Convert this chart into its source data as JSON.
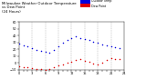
{
  "title_line1": "Milwaukee Weather Outdoor Temperature",
  "title_line2": "vs Dew Point",
  "title_line3": "(24 Hours)",
  "title_fontsize": 2.8,
  "background_color": "#ffffff",
  "grid_color": "#888888",
  "legend_labels": [
    "Outdoor Temp",
    "Dew Point"
  ],
  "legend_colors": [
    "#0000dd",
    "#dd0000"
  ],
  "tick_fontsize": 2.5,
  "ylim": [
    -10,
    60
  ],
  "yticks": [
    -10,
    0,
    10,
    20,
    30,
    40,
    50,
    60
  ],
  "xlim": [
    0,
    24
  ],
  "xticks": [
    0,
    1,
    2,
    3,
    4,
    5,
    6,
    7,
    8,
    9,
    10,
    11,
    12,
    13,
    14,
    15,
    16,
    17,
    18,
    19,
    20,
    21,
    22,
    23,
    24
  ],
  "temp_x": [
    0,
    1,
    2,
    3,
    4,
    5,
    6,
    7,
    8,
    9,
    10,
    11,
    12,
    13,
    14,
    15,
    16,
    17,
    18,
    19,
    20,
    21,
    22,
    23
  ],
  "temp_y": [
    28,
    26,
    24,
    21,
    19,
    17,
    16,
    15,
    19,
    24,
    30,
    34,
    37,
    39,
    37,
    35,
    33,
    31,
    29,
    27,
    25,
    24,
    23,
    22
  ],
  "dew_x": [
    0,
    1,
    2,
    3,
    4,
    5,
    6,
    7,
    8,
    9,
    10,
    11,
    12,
    13,
    14,
    15,
    16,
    17,
    18,
    19,
    20,
    21,
    22,
    23
  ],
  "dew_y": [
    -5,
    -6,
    -7,
    -8,
    -9,
    -9,
    -10,
    -9,
    -7,
    -4,
    -2,
    0,
    2,
    4,
    5,
    3,
    1,
    -1,
    -3,
    0,
    4,
    7,
    6,
    5
  ],
  "marker_size": 1.2,
  "vgrid_positions": [
    3,
    6,
    9,
    12,
    15,
    18,
    21
  ]
}
